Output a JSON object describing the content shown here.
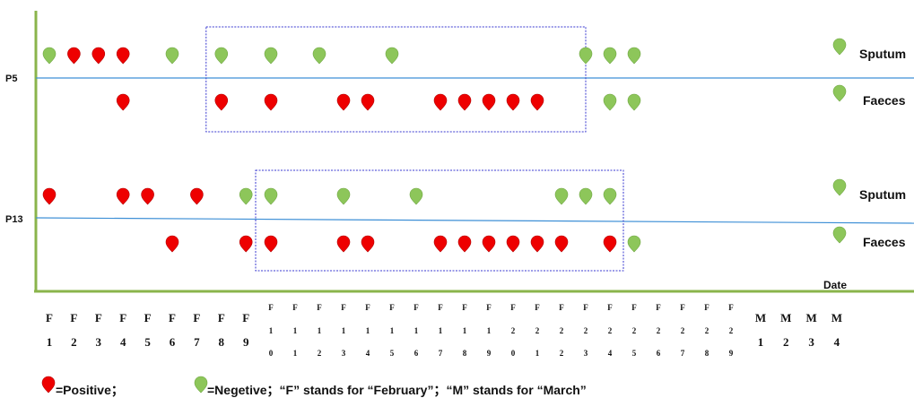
{
  "chart_data": {
    "type": "scatter",
    "x_unit_label": "Date",
    "dates": [
      "F1",
      "F2",
      "F3",
      "F4",
      "F5",
      "F6",
      "F7",
      "F8",
      "F9",
      "F10",
      "F11",
      "F12",
      "F13",
      "F14",
      "F15",
      "F16",
      "F17",
      "F18",
      "F19",
      "F20",
      "F21",
      "F22",
      "F23",
      "F24",
      "F25",
      "F26",
      "F27",
      "F28",
      "F29",
      "M1",
      "M2",
      "M3",
      "M4"
    ],
    "patients": [
      {
        "name": "P5",
        "series": [
          {
            "name": "Sputum",
            "samples": [
              {
                "date": "F1",
                "result": "negative"
              },
              {
                "date": "F2",
                "result": "positive"
              },
              {
                "date": "F3",
                "result": "positive"
              },
              {
                "date": "F4",
                "result": "positive"
              },
              {
                "date": "F6",
                "result": "negative"
              },
              {
                "date": "F8",
                "result": "negative"
              },
              {
                "date": "F10",
                "result": "negative"
              },
              {
                "date": "F12",
                "result": "negative"
              },
              {
                "date": "F15",
                "result": "negative"
              },
              {
                "date": "F23",
                "result": "negative"
              },
              {
                "date": "F24",
                "result": "negative"
              },
              {
                "date": "F25",
                "result": "negative"
              }
            ]
          },
          {
            "name": "Faeces",
            "samples": [
              {
                "date": "F4",
                "result": "positive"
              },
              {
                "date": "F8",
                "result": "positive"
              },
              {
                "date": "F10",
                "result": "positive"
              },
              {
                "date": "F13",
                "result": "positive"
              },
              {
                "date": "F14",
                "result": "positive"
              },
              {
                "date": "F17",
                "result": "positive"
              },
              {
                "date": "F18",
                "result": "positive"
              },
              {
                "date": "F19",
                "result": "positive"
              },
              {
                "date": "F20",
                "result": "positive"
              },
              {
                "date": "F21",
                "result": "positive"
              },
              {
                "date": "F24",
                "result": "negative"
              },
              {
                "date": "F25",
                "result": "negative"
              }
            ]
          }
        ],
        "highlight_range": [
          "F8",
          "F22"
        ]
      },
      {
        "name": "P13",
        "series": [
          {
            "name": "Sputum",
            "samples": [
              {
                "date": "F1",
                "result": "positive"
              },
              {
                "date": "F4",
                "result": "positive"
              },
              {
                "date": "F5",
                "result": "positive"
              },
              {
                "date": "F7",
                "result": "positive"
              },
              {
                "date": "F9",
                "result": "negative"
              },
              {
                "date": "F10",
                "result": "negative"
              },
              {
                "date": "F13",
                "result": "negative"
              },
              {
                "date": "F16",
                "result": "negative"
              },
              {
                "date": "F22",
                "result": "negative"
              },
              {
                "date": "F23",
                "result": "negative"
              },
              {
                "date": "F24",
                "result": "negative"
              }
            ]
          },
          {
            "name": "Faeces",
            "samples": [
              {
                "date": "F6",
                "result": "positive"
              },
              {
                "date": "F9",
                "result": "positive"
              },
              {
                "date": "F10",
                "result": "positive"
              },
              {
                "date": "F13",
                "result": "positive"
              },
              {
                "date": "F14",
                "result": "positive"
              },
              {
                "date": "F17",
                "result": "positive"
              },
              {
                "date": "F18",
                "result": "positive"
              },
              {
                "date": "F19",
                "result": "positive"
              },
              {
                "date": "F20",
                "result": "positive"
              },
              {
                "date": "F21",
                "result": "positive"
              },
              {
                "date": "F22",
                "result": "positive"
              },
              {
                "date": "F24",
                "result": "positive"
              },
              {
                "date": "F25",
                "result": "negative"
              }
            ]
          }
        ],
        "highlight_range": [
          "F10",
          "F24"
        ]
      }
    ],
    "legend": {
      "positive_text": "=Positive；",
      "negative_text": "=Negetive；“F” stands for “February”；“M” stands for “March”"
    },
    "colors": {
      "positive": "#ee0000",
      "negative": "#8dc65a",
      "axis": "#8ab44b",
      "baseline": "#3d8fd6",
      "box": "#3a3ad0"
    }
  }
}
